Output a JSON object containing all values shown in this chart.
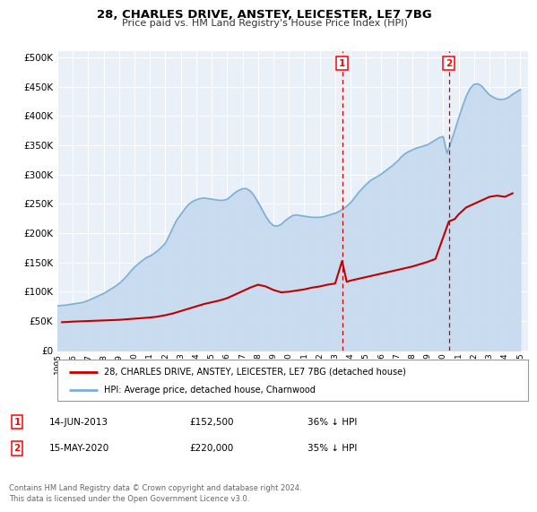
{
  "title": "28, CHARLES DRIVE, ANSTEY, LEICESTER, LE7 7BG",
  "subtitle": "Price paid vs. HM Land Registry's House Price Index (HPI)",
  "ytick_values": [
    0,
    50000,
    100000,
    150000,
    200000,
    250000,
    300000,
    350000,
    400000,
    450000,
    500000
  ],
  "xlim_start": 1995.0,
  "xlim_end": 2025.5,
  "ylim": [
    0,
    510000
  ],
  "background_color": "#ffffff",
  "plot_bg_color": "#eaf0f8",
  "grid_color": "#ffffff",
  "hpi_color": "#7bafd4",
  "hpi_fill_color": "#c5d9ee",
  "price_color": "#c00000",
  "dashed_line_color": "#cc0000",
  "marker1_x": 2013.45,
  "marker2_x": 2020.37,
  "marker1_y": 152500,
  "marker2_y": 220000,
  "legend_label1": "28, CHARLES DRIVE, ANSTEY, LEICESTER, LE7 7BG (detached house)",
  "legend_label2": "HPI: Average price, detached house, Charnwood",
  "table_entries": [
    {
      "num": "1",
      "date": "14-JUN-2013",
      "price": "£152,500",
      "pct": "36% ↓ HPI"
    },
    {
      "num": "2",
      "date": "15-MAY-2020",
      "price": "£220,000",
      "pct": "35% ↓ HPI"
    }
  ],
  "footnote": "Contains HM Land Registry data © Crown copyright and database right 2024.\nThis data is licensed under the Open Government Licence v3.0.",
  "hpi_data_x": [
    1995.0,
    1995.25,
    1995.5,
    1995.75,
    1996.0,
    1996.25,
    1996.5,
    1996.75,
    1997.0,
    1997.25,
    1997.5,
    1997.75,
    1998.0,
    1998.25,
    1998.5,
    1998.75,
    1999.0,
    1999.25,
    1999.5,
    1999.75,
    2000.0,
    2000.25,
    2000.5,
    2000.75,
    2001.0,
    2001.25,
    2001.5,
    2001.75,
    2002.0,
    2002.25,
    2002.5,
    2002.75,
    2003.0,
    2003.25,
    2003.5,
    2003.75,
    2004.0,
    2004.25,
    2004.5,
    2004.75,
    2005.0,
    2005.25,
    2005.5,
    2005.75,
    2006.0,
    2006.25,
    2006.5,
    2006.75,
    2007.0,
    2007.25,
    2007.5,
    2007.75,
    2008.0,
    2008.25,
    2008.5,
    2008.75,
    2009.0,
    2009.25,
    2009.5,
    2009.75,
    2010.0,
    2010.25,
    2010.5,
    2010.75,
    2011.0,
    2011.25,
    2011.5,
    2011.75,
    2012.0,
    2012.25,
    2012.5,
    2012.75,
    2013.0,
    2013.25,
    2013.5,
    2013.75,
    2014.0,
    2014.25,
    2014.5,
    2014.75,
    2015.0,
    2015.25,
    2015.5,
    2015.75,
    2016.0,
    2016.25,
    2016.5,
    2016.75,
    2017.0,
    2017.25,
    2017.5,
    2017.75,
    2018.0,
    2018.25,
    2018.5,
    2018.75,
    2019.0,
    2019.25,
    2019.5,
    2019.75,
    2020.0,
    2020.25,
    2020.5,
    2020.75,
    2021.0,
    2021.25,
    2021.5,
    2021.75,
    2022.0,
    2022.25,
    2022.5,
    2022.75,
    2023.0,
    2023.25,
    2023.5,
    2023.75,
    2024.0,
    2024.25,
    2024.5,
    2024.75,
    2025.0
  ],
  "hpi_data_y": [
    76000,
    76500,
    77000,
    78000,
    79000,
    80000,
    81000,
    82500,
    85000,
    88000,
    91000,
    94000,
    97000,
    101000,
    105000,
    109000,
    114000,
    120000,
    127000,
    135000,
    142000,
    148000,
    153000,
    158000,
    161000,
    165000,
    170000,
    176000,
    183000,
    196000,
    210000,
    223000,
    232000,
    241000,
    249000,
    254000,
    257000,
    259000,
    260000,
    259000,
    258000,
    257000,
    256000,
    256000,
    258000,
    263000,
    269000,
    273000,
    276000,
    276000,
    272000,
    264000,
    253000,
    241000,
    229000,
    219000,
    213000,
    212000,
    215000,
    221000,
    226000,
    230000,
    231000,
    230000,
    229000,
    228000,
    227000,
    227000,
    227000,
    228000,
    230000,
    232000,
    234000,
    237000,
    241000,
    246000,
    252000,
    260000,
    269000,
    276000,
    283000,
    289000,
    293000,
    297000,
    301000,
    306000,
    311000,
    316000,
    322000,
    329000,
    335000,
    339000,
    342000,
    345000,
    347000,
    349000,
    351000,
    355000,
    359000,
    363000,
    365000,
    336000,
    355000,
    375000,
    396000,
    416000,
    434000,
    447000,
    454000,
    455000,
    451000,
    443000,
    436000,
    432000,
    429000,
    428000,
    429000,
    432000,
    437000,
    441000,
    445000
  ],
  "price_data_x": [
    1995.3,
    1995.75,
    1996.0,
    1996.5,
    1997.0,
    1997.5,
    1998.0,
    1998.5,
    1999.0,
    1999.5,
    2000.0,
    2000.5,
    2001.0,
    2001.5,
    2002.0,
    2002.5,
    2003.0,
    2003.5,
    2004.0,
    2004.5,
    2005.0,
    2005.5,
    2006.0,
    2006.5,
    2007.0,
    2007.5,
    2008.0,
    2008.5,
    2009.0,
    2009.5,
    2010.0,
    2010.5,
    2011.0,
    2011.5,
    2012.0,
    2012.5,
    2013.0,
    2013.45,
    2013.75,
    2014.0,
    2014.5,
    2015.0,
    2015.5,
    2016.0,
    2016.5,
    2017.0,
    2017.5,
    2018.0,
    2018.5,
    2019.0,
    2019.5,
    2020.37,
    2020.75,
    2021.0,
    2021.5,
    2022.0,
    2022.5,
    2023.0,
    2023.5,
    2024.0,
    2024.5
  ],
  "price_data_y": [
    48000,
    48500,
    49000,
    49500,
    50000,
    50500,
    51000,
    51500,
    52000,
    53000,
    54000,
    55000,
    56000,
    57500,
    60000,
    63000,
    67000,
    71000,
    75000,
    79000,
    82000,
    85000,
    89000,
    95000,
    101000,
    107000,
    112000,
    109000,
    103000,
    99000,
    100000,
    102000,
    104000,
    107000,
    109000,
    112000,
    114000,
    152500,
    117000,
    119000,
    122000,
    125000,
    128000,
    131000,
    134000,
    137000,
    140000,
    143000,
    147000,
    151000,
    156000,
    220000,
    224000,
    232000,
    244000,
    250000,
    256000,
    262000,
    264000,
    262000,
    268000
  ]
}
